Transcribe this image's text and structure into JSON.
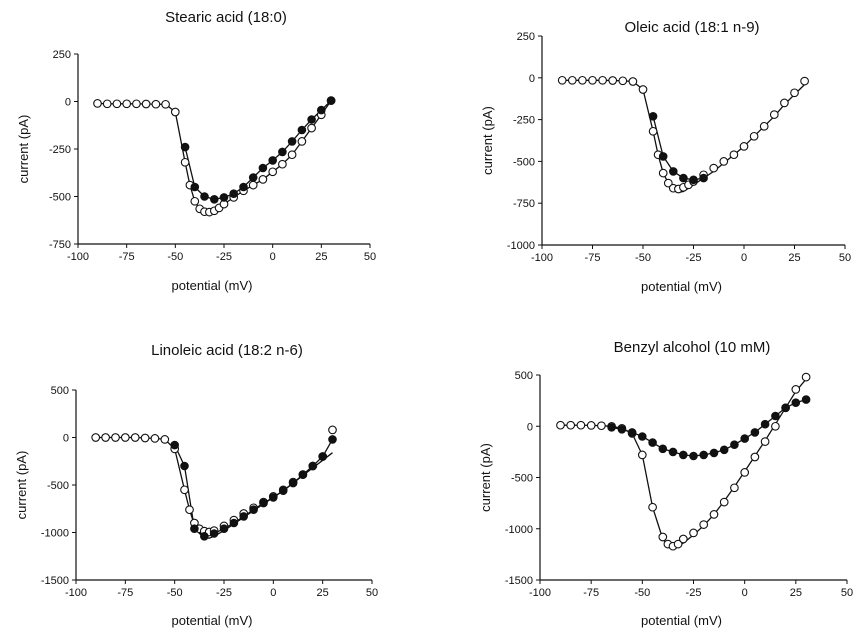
{
  "chart_data": [
    {
      "type": "scatter",
      "title": "Stearic acid (18:0)",
      "xlabel": "potential (mV)",
      "ylabel": "current (pA)",
      "xlim": [
        -100,
        50
      ],
      "ylim": [
        -750,
        250
      ],
      "xticks": [
        -100,
        -75,
        -50,
        -25,
        0,
        25,
        50
      ],
      "yticks": [
        -750,
        -500,
        -250,
        0,
        250
      ],
      "series": [
        {
          "style": "open",
          "x": [
            -90,
            -85,
            -80,
            -75,
            -70,
            -65,
            -60,
            -55,
            -50,
            -45,
            -42.5,
            -40,
            -37.5,
            -35,
            -32.5,
            -30,
            -27.5,
            -25,
            -20,
            -15,
            -10,
            -5,
            0,
            5,
            10,
            15,
            20,
            25,
            30
          ],
          "y": [
            -10,
            -12,
            -12,
            -12,
            -12,
            -13,
            -14,
            -15,
            -55,
            -320,
            -440,
            -525,
            -565,
            -580,
            -582,
            -575,
            -560,
            -540,
            -505,
            -470,
            -440,
            -410,
            -370,
            -330,
            -280,
            -210,
            -140,
            -70,
            5
          ]
        },
        {
          "style": "filled",
          "x": [
            -45,
            -40,
            -35,
            -30,
            -25,
            -20,
            -15,
            -10,
            -5,
            0,
            5,
            10,
            15,
            20,
            25,
            30
          ],
          "y": [
            -240,
            -450,
            -500,
            -515,
            -505,
            -485,
            -450,
            -400,
            -350,
            -310,
            -265,
            -210,
            -150,
            -95,
            -45,
            5
          ]
        }
      ]
    },
    {
      "type": "scatter",
      "title": "Oleic acid (18:1 n-9)",
      "xlabel": "potential (mV)",
      "ylabel": "current (pA)",
      "xlim": [
        -100,
        50
      ],
      "ylim": [
        -1000,
        250
      ],
      "xticks": [
        -100,
        -75,
        -50,
        -25,
        0,
        25,
        50
      ],
      "yticks": [
        -1000,
        -750,
        -500,
        -250,
        0,
        250
      ],
      "series": [
        {
          "style": "open",
          "x": [
            -90,
            -85,
            -80,
            -75,
            -70,
            -65,
            -60,
            -55,
            -50,
            -45,
            -42.5,
            -40,
            -37.5,
            -35,
            -32.5,
            -30,
            -27.5,
            -25,
            -20,
            -15,
            -10,
            -5,
            0,
            5,
            10,
            15,
            20,
            25,
            30
          ],
          "y": [
            -15,
            -15,
            -15,
            -15,
            -15,
            -16,
            -18,
            -22,
            -70,
            -320,
            -460,
            -570,
            -630,
            -660,
            -665,
            -655,
            -640,
            -620,
            -580,
            -540,
            -500,
            -460,
            -410,
            -350,
            -290,
            -220,
            -150,
            -90,
            -20
          ],
          "fit": [
            -15,
            -15,
            -15,
            -15,
            -15,
            -16,
            -18,
            -22,
            -70,
            -320,
            -460,
            -570,
            -630,
            -665,
            -685,
            -680,
            -660,
            -640,
            -600,
            -560,
            -510,
            -460,
            -410,
            -350,
            -290,
            -230,
            -160,
            -100,
            -40
          ]
        },
        {
          "style": "filled",
          "x": [
            -45,
            -40,
            -35,
            -30,
            -25,
            -20
          ],
          "y": [
            -230,
            -470,
            -560,
            -600,
            -610,
            -600
          ]
        }
      ]
    },
    {
      "type": "scatter",
      "title": "Linoleic acid (18:2 n-6)",
      "xlabel": "potential (mV)",
      "ylabel": "current (pA)",
      "xlim": [
        -100,
        50
      ],
      "ylim": [
        -1500,
        500
      ],
      "xticks": [
        -100,
        -75,
        -50,
        -25,
        0,
        25,
        50
      ],
      "yticks": [
        -1500,
        -1000,
        -500,
        0,
        500
      ],
      "series": [
        {
          "style": "open",
          "x": [
            -90,
            -85,
            -80,
            -75,
            -70,
            -65,
            -60,
            -55,
            -50,
            -45,
            -42.5,
            -40,
            -37.5,
            -35,
            -32.5,
            -30,
            -25,
            -20,
            -15,
            -10,
            -5,
            0,
            5,
            10,
            15,
            20,
            25,
            30
          ],
          "y": [
            0,
            0,
            0,
            0,
            0,
            -5,
            -10,
            -20,
            -120,
            -550,
            -760,
            -900,
            -960,
            -985,
            -995,
            -980,
            -930,
            -870,
            -800,
            -740,
            -680,
            -620,
            -550,
            -470,
            -390,
            -300,
            -200,
            80
          ],
          "fit": [
            0,
            0,
            0,
            0,
            0,
            -5,
            -10,
            -20,
            -120,
            -550,
            -760,
            -920,
            -1010,
            -1050,
            -1060,
            -1040,
            -980,
            -910,
            -840,
            -770,
            -700,
            -630,
            -560,
            -480,
            -400,
            -320,
            -240,
            -160
          ]
        },
        {
          "style": "filled",
          "x": [
            -50,
            -45,
            -40,
            -35,
            -30,
            -25,
            -20,
            -15,
            -10,
            -5,
            0,
            5,
            10,
            15,
            20,
            25,
            30
          ],
          "y": [
            -80,
            -300,
            -960,
            -1040,
            -1010,
            -960,
            -900,
            -830,
            -760,
            -690,
            -630,
            -560,
            -480,
            -390,
            -300,
            -200,
            -20
          ]
        }
      ]
    },
    {
      "type": "scatter",
      "title": "Benzyl alcohol (10 mM)",
      "xlabel": "potential (mV)",
      "ylabel": "current (pA)",
      "xlim": [
        -100,
        50
      ],
      "ylim": [
        -1500,
        500
      ],
      "xticks": [
        -100,
        -75,
        -50,
        -25,
        0,
        25,
        50
      ],
      "yticks": [
        -1500,
        -1000,
        -500,
        0,
        500
      ],
      "series": [
        {
          "style": "open",
          "x": [
            -90,
            -85,
            -80,
            -75,
            -70,
            -65,
            -60,
            -55,
            -50,
            -45,
            -40,
            -37.5,
            -35,
            -32.5,
            -30,
            -25,
            -20,
            -15,
            -10,
            -5,
            0,
            5,
            10,
            15,
            20,
            25,
            30
          ],
          "y": [
            10,
            10,
            10,
            8,
            5,
            0,
            -20,
            -70,
            -280,
            -790,
            -1080,
            -1150,
            -1170,
            -1150,
            -1100,
            -1040,
            -960,
            -860,
            -740,
            -600,
            -450,
            -300,
            -150,
            0,
            180,
            360,
            480
          ],
          "fit": [
            10,
            10,
            10,
            8,
            5,
            0,
            -20,
            -70,
            -280,
            -790,
            -1100,
            -1160,
            -1180,
            -1170,
            -1140,
            -1060,
            -970,
            -860,
            -730,
            -590,
            -440,
            -290,
            -140,
            20,
            180,
            340,
            460
          ]
        },
        {
          "style": "filled",
          "x": [
            -65,
            -60,
            -55,
            -50,
            -45,
            -40,
            -35,
            -30,
            -25,
            -20,
            -15,
            -10,
            -5,
            0,
            5,
            10,
            15,
            20,
            25,
            30
          ],
          "y": [
            -10,
            -30,
            -60,
            -100,
            -160,
            -220,
            -250,
            -280,
            -290,
            -280,
            -260,
            -230,
            -180,
            -120,
            -60,
            20,
            100,
            180,
            230,
            260
          ]
        }
      ]
    }
  ]
}
